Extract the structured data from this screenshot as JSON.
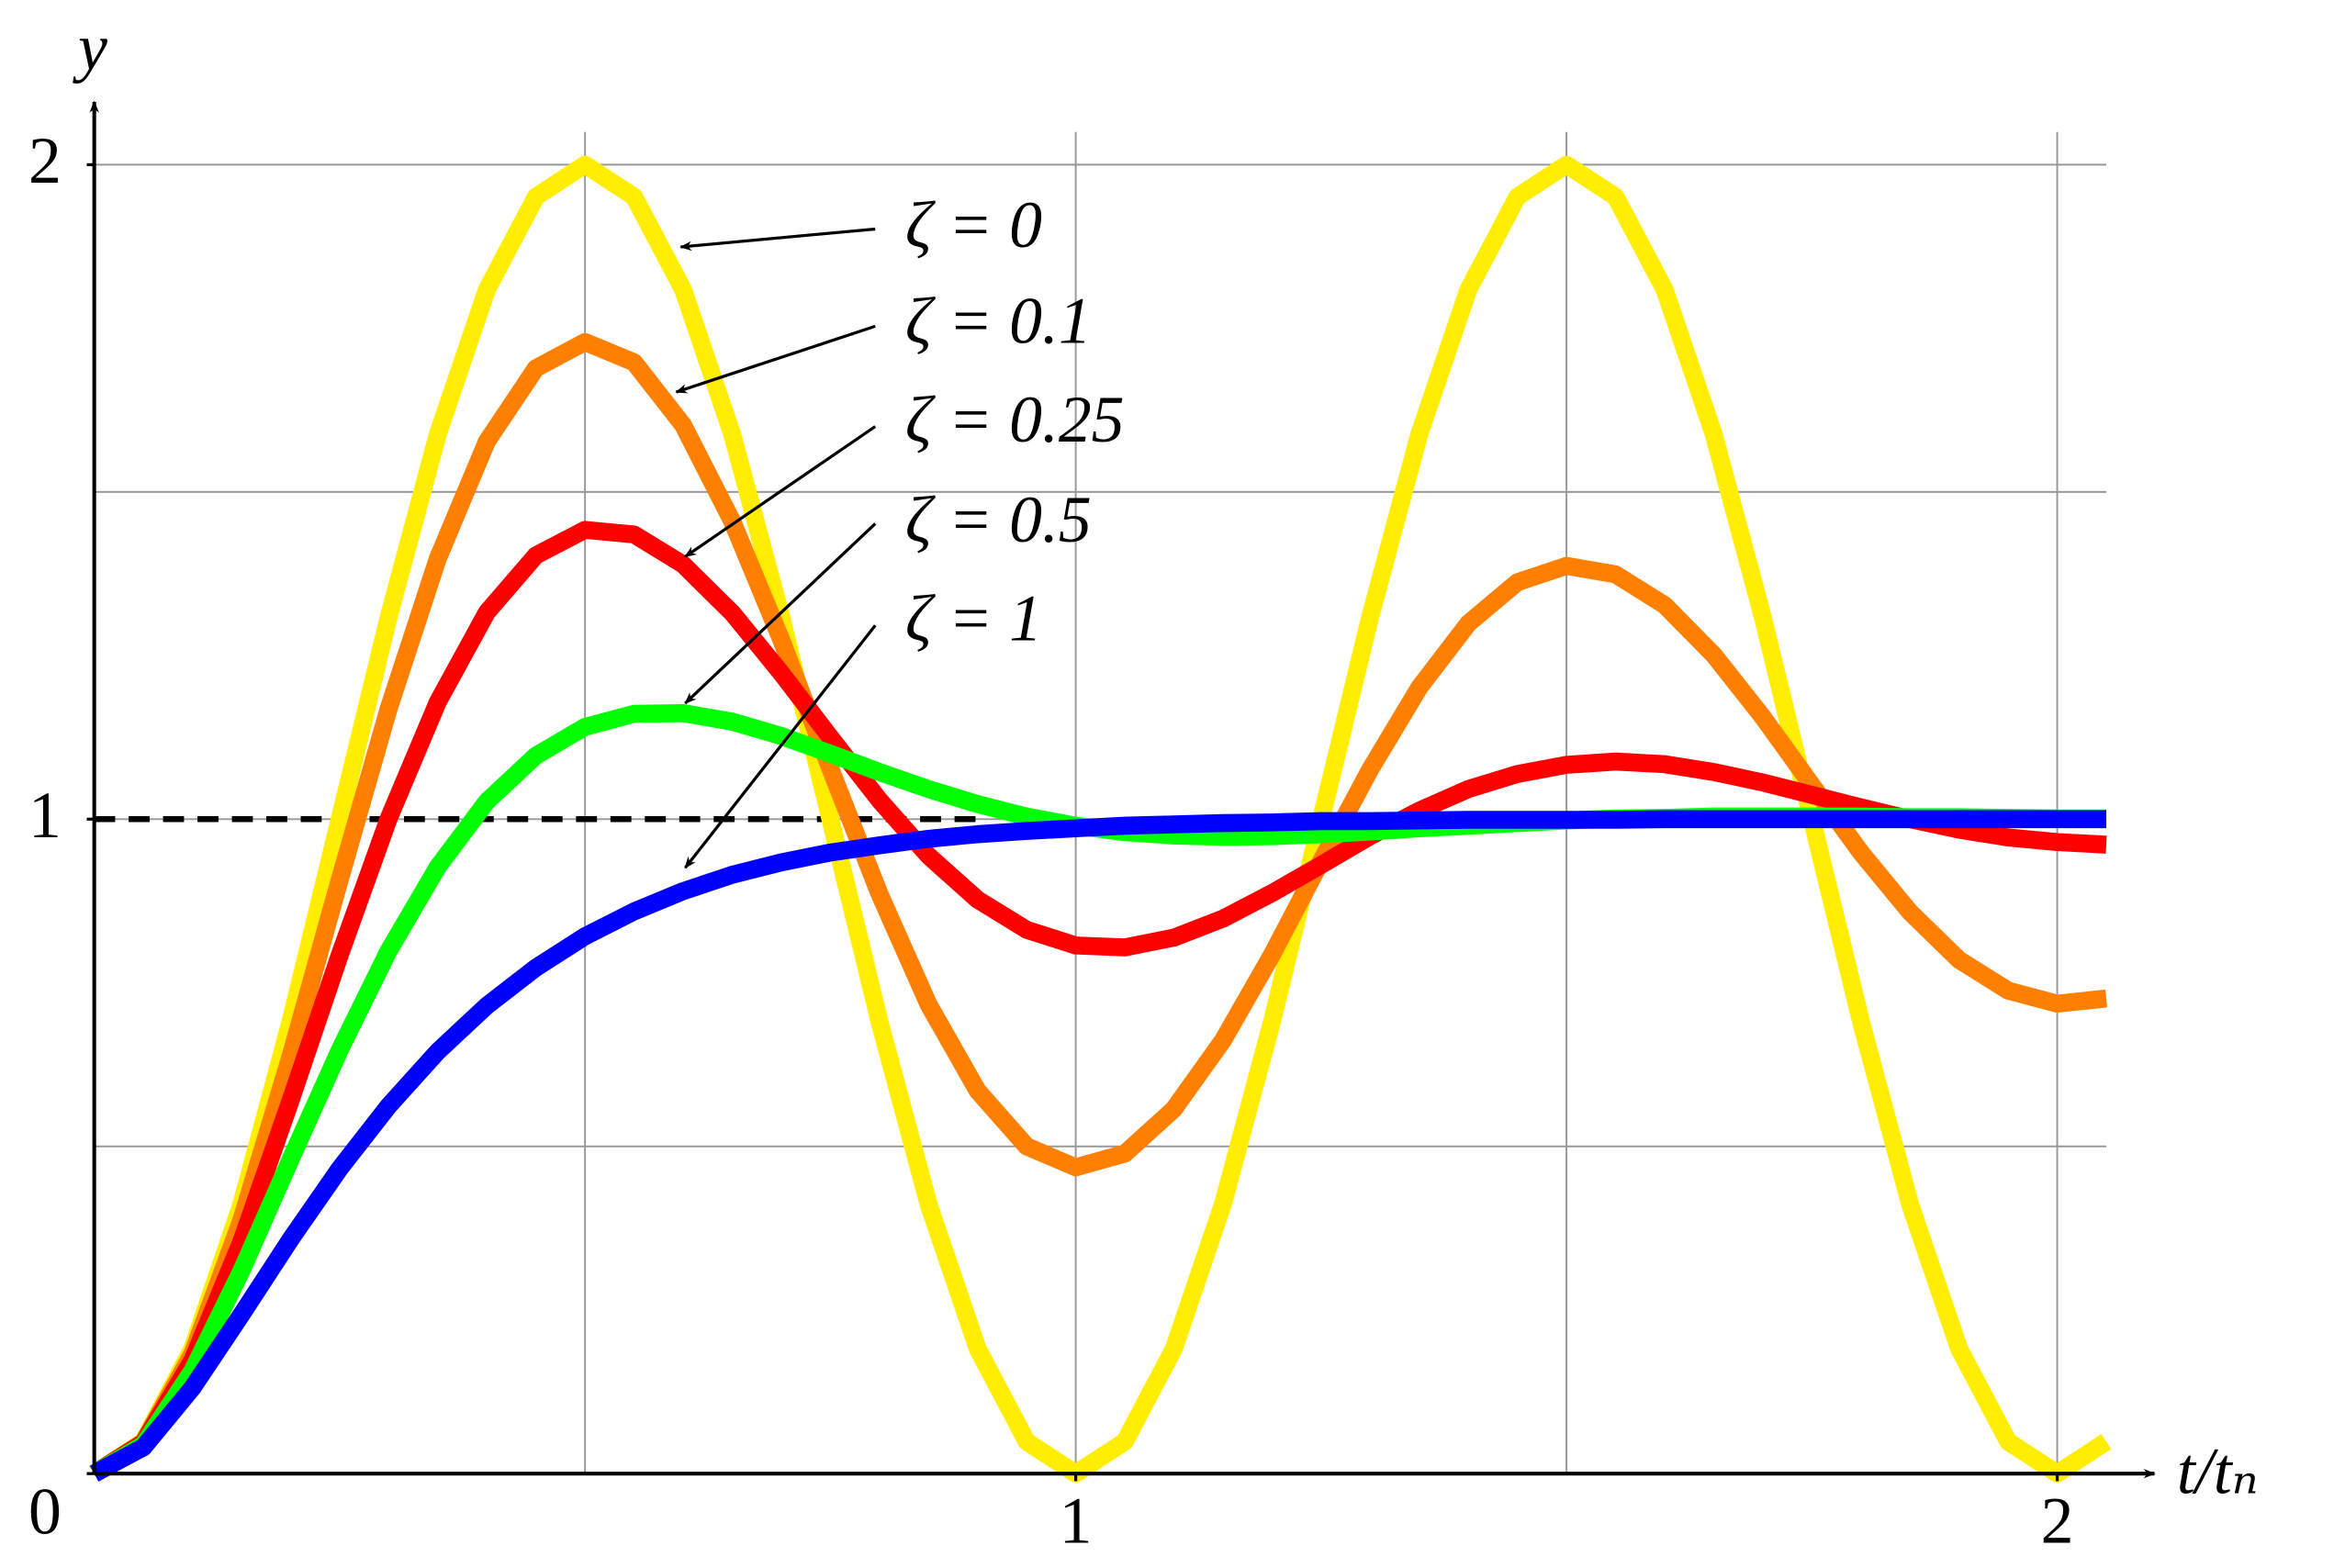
{
  "chart_data": {
    "type": "line",
    "xlabel": "t/tₙ",
    "ylabel": "y",
    "xlim": [
      0,
      2.05
    ],
    "ylim": [
      0,
      2.05
    ],
    "xticks": [
      1,
      2
    ],
    "yticks": [
      0,
      1,
      2
    ],
    "xgrid": [
      0.5,
      1,
      1.5,
      2
    ],
    "ygrid": [
      0.5,
      1,
      1.5,
      2
    ],
    "grid": true,
    "reference": {
      "y": 1,
      "x": [
        0,
        0.9
      ],
      "color": "#000000"
    },
    "x": [
      0,
      0.05,
      0.1,
      0.15,
      0.2,
      0.25,
      0.3,
      0.35,
      0.4,
      0.45,
      0.5,
      0.55,
      0.6,
      0.65,
      0.7,
      0.75,
      0.8,
      0.85,
      0.9,
      0.95,
      1,
      1.05,
      1.1,
      1.15,
      1.2,
      1.25,
      1.3,
      1.35,
      1.4,
      1.45,
      1.5,
      1.55,
      1.6,
      1.65,
      1.7,
      1.75,
      1.8,
      1.85,
      1.9,
      1.95,
      2,
      2.05
    ],
    "series": [
      {
        "name": "ζ = 0",
        "color": "#ffee00",
        "values": [
          0,
          0.049,
          0.191,
          0.412,
          0.691,
          1,
          1.309,
          1.588,
          1.809,
          1.951,
          2,
          1.951,
          1.809,
          1.588,
          1.309,
          1,
          0.691,
          0.412,
          0.191,
          0.049,
          0,
          0.049,
          0.191,
          0.412,
          0.691,
          1,
          1.309,
          1.588,
          1.809,
          1.951,
          2,
          1.951,
          1.809,
          1.588,
          1.309,
          1,
          0.691,
          0.412,
          0.191,
          0.049,
          0,
          0.049
        ]
      },
      {
        "name": "ζ = 0.1",
        "color": "#ff8000",
        "values": [
          0,
          0.048,
          0.183,
          0.388,
          0.638,
          0.907,
          1.169,
          1.398,
          1.577,
          1.689,
          1.729,
          1.698,
          1.602,
          1.455,
          1.274,
          1.077,
          0.886,
          0.717,
          0.585,
          0.5,
          0.468,
          0.489,
          0.557,
          0.662,
          0.793,
          0.936,
          1.076,
          1.201,
          1.299,
          1.362,
          1.387,
          1.374,
          1.327,
          1.251,
          1.156,
          1.052,
          0.949,
          0.858,
          0.785,
          0.738,
          0.718,
          0.726
        ]
      },
      {
        "name": "ζ = 0.25",
        "color": "#ff0000",
        "values": [
          0,
          0.047,
          0.173,
          0.355,
          0.57,
          0.792,
          1.001,
          1.179,
          1.316,
          1.403,
          1.442,
          1.435,
          1.389,
          1.315,
          1.223,
          1.125,
          1.029,
          0.944,
          0.877,
          0.831,
          0.807,
          0.804,
          0.819,
          0.848,
          0.887,
          0.93,
          0.974,
          1.013,
          1.046,
          1.069,
          1.083,
          1.088,
          1.084,
          1.072,
          1.056,
          1.037,
          1.018,
          1,
          0.984,
          0.972,
          0.965,
          0.961
        ]
      },
      {
        "name": "ζ = 0.5",
        "color": "#00ff00",
        "values": [
          0,
          0.044,
          0.157,
          0.31,
          0.48,
          0.647,
          0.799,
          0.927,
          1.027,
          1.097,
          1.141,
          1.161,
          1.162,
          1.149,
          1.127,
          1.1,
          1.072,
          1.046,
          1.023,
          1.004,
          0.99,
          0.98,
          0.975,
          0.973,
          0.974,
          0.977,
          0.981,
          0.986,
          0.99,
          0.994,
          0.998,
          1.001,
          1.002,
          1.004,
          1.004,
          1.004,
          1.004,
          1.003,
          1.003,
          1.002,
          1.001,
          1.001
        ]
      },
      {
        "name": "ζ = 1",
        "color": "#0000ff",
        "values": [
          0,
          0.04,
          0.131,
          0.243,
          0.358,
          0.466,
          0.562,
          0.645,
          0.715,
          0.773,
          0.821,
          0.859,
          0.89,
          0.915,
          0.934,
          0.949,
          0.96,
          0.97,
          0.977,
          0.982,
          0.986,
          0.99,
          0.992,
          0.994,
          0.995,
          0.997,
          0.997,
          0.998,
          0.999,
          0.999,
          0.999,
          0.999,
          1,
          1,
          1,
          1,
          1,
          1,
          1,
          1,
          1,
          1
        ]
      }
    ]
  }
}
